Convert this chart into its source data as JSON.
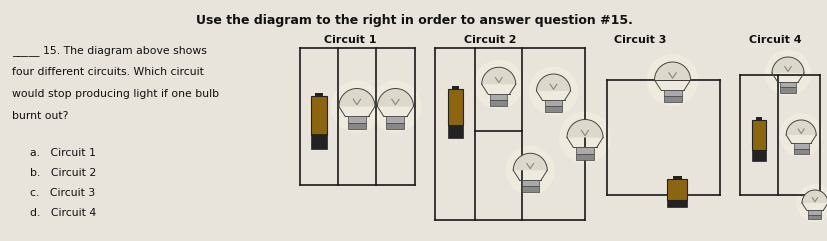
{
  "bg_color": "#e8e4dc",
  "title": "Use the diagram to the right in order to answer question #15.",
  "title_fontsize": 9.0,
  "title_fontweight": "bold",
  "question_lines": [
    "_____ 15. The diagram above shows",
    "four different circuits. Which circuit",
    "would stop producing light if one bulb",
    "burnt out?"
  ],
  "answer_lines": [
    "a.   Circuit 1",
    "b.   Circuit 2",
    "c.   Circuit 3",
    "d.   Circuit 4"
  ],
  "circuit_labels": [
    "Circuit 1",
    "Circuit 2",
    "Circuit 3",
    "Circuit 4"
  ],
  "wire_color": "#1a1a1a",
  "battery_body": "#8B6510",
  "battery_dark": "#222222",
  "battery_mid": "#555555",
  "bulb_glass": "#ddd8cc",
  "bulb_base": "#999999",
  "bulb_outline": "#444444",
  "lw": 1.2
}
